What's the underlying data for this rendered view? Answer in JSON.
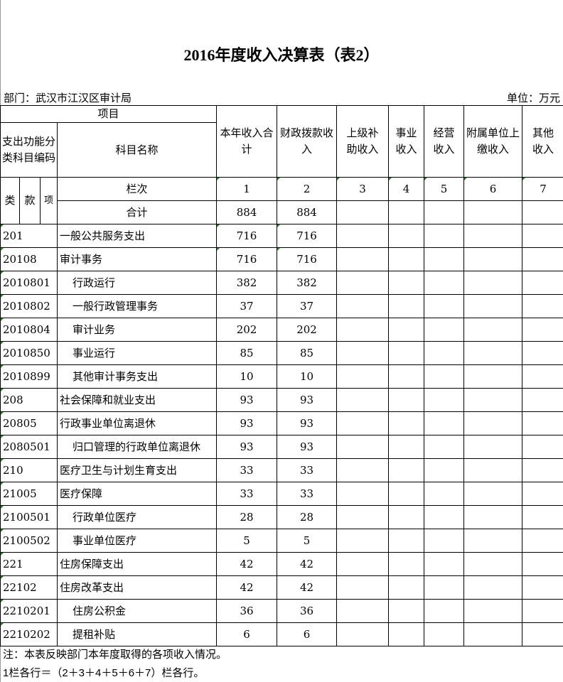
{
  "title": "2016年度收入决算表（表2）",
  "department": "部门：武汉市江汉区审计局",
  "unit": "单位：万元",
  "header": {
    "item": "项目",
    "code": "支出功能分类科目编码",
    "name": "科目名称",
    "columns": [
      "本年收入合计",
      "财政拨款收入",
      "上级补助收入",
      "事业收入",
      "经营收入",
      "附属单位上缴收入",
      "其他收入"
    ],
    "lei": "类",
    "kuan": "款",
    "xiang": "项",
    "lanci": "栏次",
    "col_numbers": [
      "1",
      "2",
      "3",
      "4",
      "5",
      "6",
      "7"
    ],
    "total_label": "合计",
    "total_values": [
      "884",
      "884",
      "",
      "",
      "",
      "",
      ""
    ]
  },
  "rows": [
    {
      "code": "201",
      "name": "一般公共服务支出",
      "indent": false,
      "values": [
        "716",
        "716",
        "",
        "",
        "",
        "",
        ""
      ]
    },
    {
      "code": "20108",
      "name": "审计事务",
      "indent": false,
      "values": [
        "716",
        "716",
        "",
        "",
        "",
        "",
        ""
      ]
    },
    {
      "code": "2010801",
      "name": "行政运行",
      "indent": true,
      "values": [
        "382",
        "382",
        "",
        "",
        "",
        "",
        ""
      ]
    },
    {
      "code": "2010802",
      "name": "一般行政管理事务",
      "indent": true,
      "values": [
        "37",
        "37",
        "",
        "",
        "",
        "",
        ""
      ]
    },
    {
      "code": "2010804",
      "name": "审计业务",
      "indent": true,
      "values": [
        "202",
        "202",
        "",
        "",
        "",
        "",
        ""
      ]
    },
    {
      "code": "2010850",
      "name": "事业运行",
      "indent": true,
      "values": [
        "85",
        "85",
        "",
        "",
        "",
        "",
        ""
      ]
    },
    {
      "code": "2010899",
      "name": "其他审计事务支出",
      "indent": true,
      "values": [
        "10",
        "10",
        "",
        "",
        "",
        "",
        ""
      ]
    },
    {
      "code": "208",
      "name": "社会保障和就业支出",
      "indent": false,
      "values": [
        "93",
        "93",
        "",
        "",
        "",
        "",
        ""
      ]
    },
    {
      "code": "20805",
      "name": "行政事业单位离退休",
      "indent": false,
      "values": [
        "93",
        "93",
        "",
        "",
        "",
        "",
        ""
      ]
    },
    {
      "code": "2080501",
      "name": "归口管理的行政单位离退休",
      "indent": true,
      "values": [
        "93",
        "93",
        "",
        "",
        "",
        "",
        ""
      ]
    },
    {
      "code": "210",
      "name": "医疗卫生与计划生育支出",
      "indent": false,
      "values": [
        "33",
        "33",
        "",
        "",
        "",
        "",
        ""
      ]
    },
    {
      "code": "21005",
      "name": "医疗保障",
      "indent": false,
      "values": [
        "33",
        "33",
        "",
        "",
        "",
        "",
        ""
      ]
    },
    {
      "code": "2100501",
      "name": "行政单位医疗",
      "indent": true,
      "values": [
        "28",
        "28",
        "",
        "",
        "",
        "",
        ""
      ]
    },
    {
      "code": "2100502",
      "name": "事业单位医疗",
      "indent": true,
      "values": [
        "5",
        "5",
        "",
        "",
        "",
        "",
        ""
      ]
    },
    {
      "code": "221",
      "name": "住房保障支出",
      "indent": false,
      "values": [
        "42",
        "42",
        "",
        "",
        "",
        "",
        ""
      ]
    },
    {
      "code": "22102",
      "name": "住房改革支出",
      "indent": false,
      "values": [
        "42",
        "42",
        "",
        "",
        "",
        "",
        ""
      ]
    },
    {
      "code": "2210201",
      "name": "住房公积金",
      "indent": true,
      "values": [
        "36",
        "36",
        "",
        "",
        "",
        "",
        ""
      ]
    },
    {
      "code": "2210202",
      "name": "提租补贴",
      "indent": true,
      "values": [
        "6",
        "6",
        "",
        "",
        "",
        "",
        ""
      ]
    }
  ],
  "notes": [
    "注：本表反映部门本年度取得的各项收入情况。",
    "1栏各行＝（2＋3＋4＋5＋6＋7）栏各行。"
  ]
}
